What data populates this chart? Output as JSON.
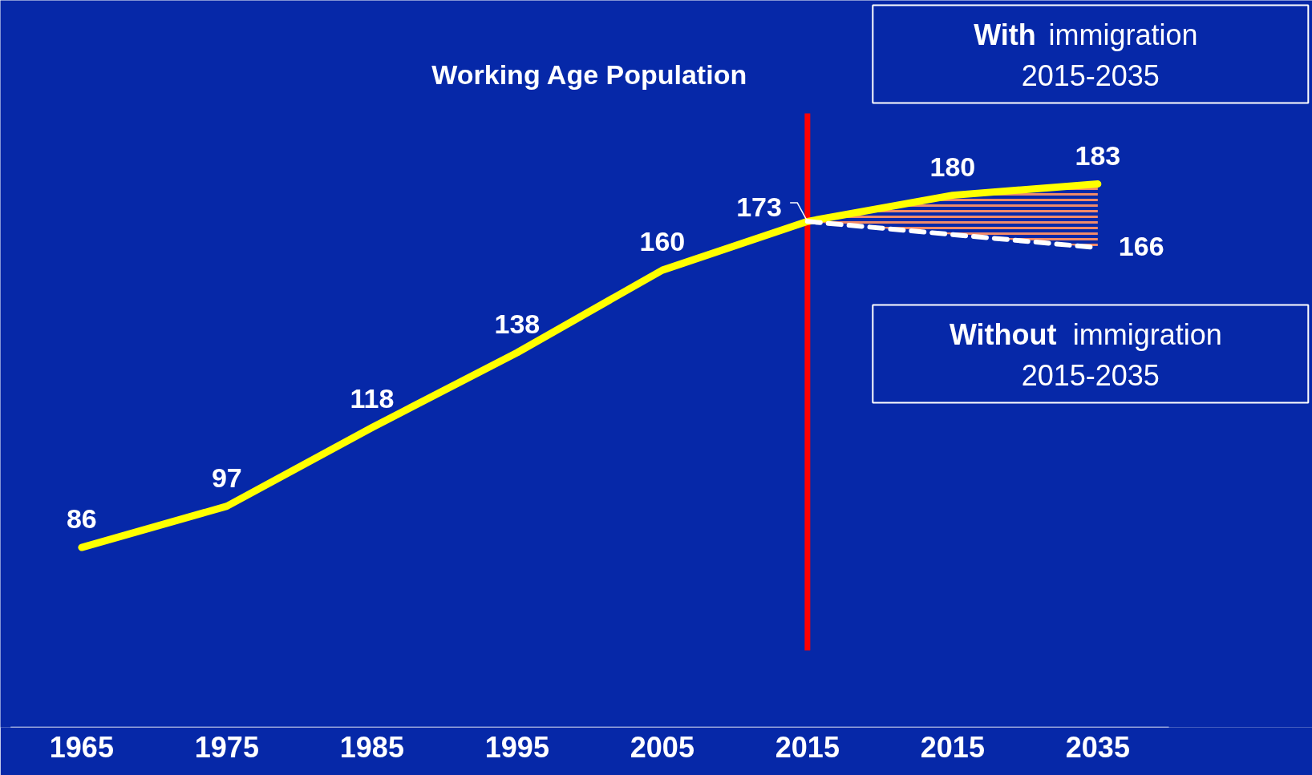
{
  "chart_data": {
    "type": "line",
    "title": "Working Age Population",
    "categories": [
      "1965",
      "1975",
      "1985",
      "1995",
      "2005",
      "2015",
      "2015",
      "2035"
    ],
    "ylim": [
      38,
      232
    ],
    "tick_labels": "x",
    "grid": false,
    "marker": "none",
    "series": [
      {
        "color": "#ffff00",
        "line_style": "solid",
        "values": [
          86,
          97,
          118,
          138,
          160,
          173,
          180,
          183
        ],
        "value_labels": [
          "86",
          "97",
          "118",
          "138",
          "160",
          null,
          "180",
          "183"
        ],
        "lower": [
          null,
          null,
          null,
          null,
          null,
          173,
          169.5,
          166
        ],
        "upper": [
          null,
          null,
          null,
          null,
          null,
          173,
          180,
          183
        ]
      },
      {
        "color": "#ffffff",
        "line_style": "dashed",
        "values": [
          null,
          null,
          null,
          null,
          null,
          173,
          169.5,
          166
        ],
        "value_labels": [
          null,
          null,
          null,
          null,
          null,
          "173",
          null,
          "166"
        ]
      }
    ],
    "ref_lines": [
      {
        "axis": "x",
        "value": "2015",
        "color": "#ff0000"
      }
    ],
    "annotations": [
      "With immigration\n2015-2035",
      "Without immigration\n2015-2035"
    ]
  }
}
